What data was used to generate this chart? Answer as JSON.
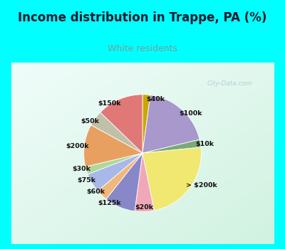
{
  "title": "Income distribution in Trappe, PA (%)",
  "subtitle": "White residents",
  "title_color": "#1a1a2e",
  "subtitle_color": "#7a9a9a",
  "bg_cyan": "#00ffff",
  "labels": [
    "$40k",
    "$100k",
    "$10k",
    "> $200k",
    "$20k",
    "$125k",
    "$60k",
    "$75k",
    "$30k",
    "$200k",
    "$50k",
    "$150k"
  ],
  "values": [
    2,
    18,
    2,
    22,
    5,
    8,
    3,
    5,
    2,
    11,
    4,
    12
  ],
  "colors": [
    "#c8a800",
    "#a898cc",
    "#7aaa7a",
    "#f0e870",
    "#f0a8b8",
    "#8888c8",
    "#f0b87a",
    "#a8b8e8",
    "#b0d898",
    "#e8a060",
    "#c0c0a8",
    "#e07878"
  ],
  "startangle": 90,
  "line_colors": [
    "#c8a800",
    "#a898cc",
    "#7aaa7a",
    "#f0e870",
    "#f0a8b8",
    "#8888c8",
    "#f0b87a",
    "#a8b8e8",
    "#b0d898",
    "#e8a060",
    "#c0c0a8",
    "#e07878"
  ]
}
